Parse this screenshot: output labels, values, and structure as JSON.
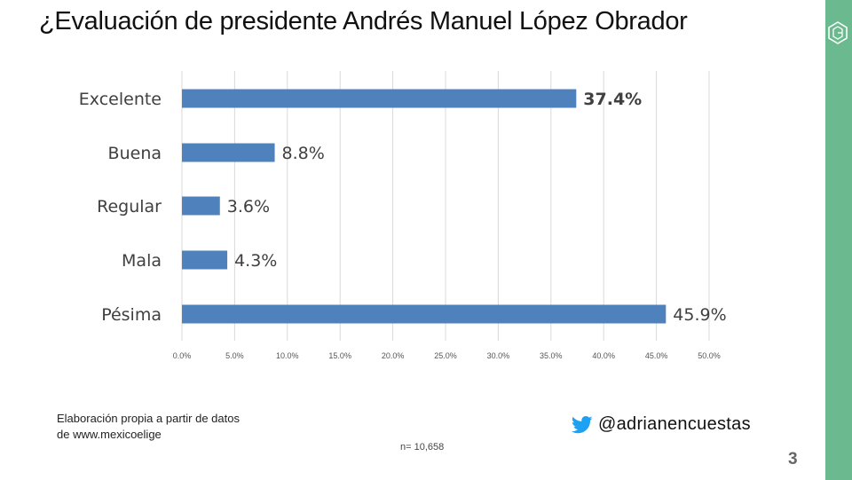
{
  "slide": {
    "title": "¿Evaluación de presidente Andrés Manuel López Obrador",
    "source_line1": "Elaboración propia a partir de datos",
    "source_line2": "de www.mexicoelige",
    "sample_size": "n= 10,658",
    "twitter_handle": "@adrianencuestas",
    "page_number": "3",
    "colors": {
      "accent": "#6bb98f",
      "bar": "#4f81bd"
    }
  },
  "chart_data": {
    "type": "bar",
    "orientation": "horizontal",
    "title": "¿Evaluación de presidente Andrés Manuel López Obrador",
    "categories": [
      "Excelente",
      "Buena",
      "Regular",
      "Mala",
      "Pésima"
    ],
    "values": [
      37.4,
      8.8,
      3.6,
      4.3,
      45.9
    ],
    "data_labels": [
      "37.4%",
      "8.8%",
      "3.6%",
      "4.3%",
      "45.9%"
    ],
    "bold_labels": [
      true,
      false,
      false,
      false,
      false
    ],
    "x_ticks": [
      0,
      5,
      10,
      15,
      20,
      25,
      30,
      35,
      40,
      45,
      50
    ],
    "x_tick_labels": [
      "0.0%",
      "5.0%",
      "10.0%",
      "15.0%",
      "20.0%",
      "25.0%",
      "30.0%",
      "35.0%",
      "40.0%",
      "45.0%",
      "50.0%"
    ],
    "xlim": [
      0,
      50
    ],
    "grid": true,
    "xlabel": "",
    "ylabel": ""
  }
}
